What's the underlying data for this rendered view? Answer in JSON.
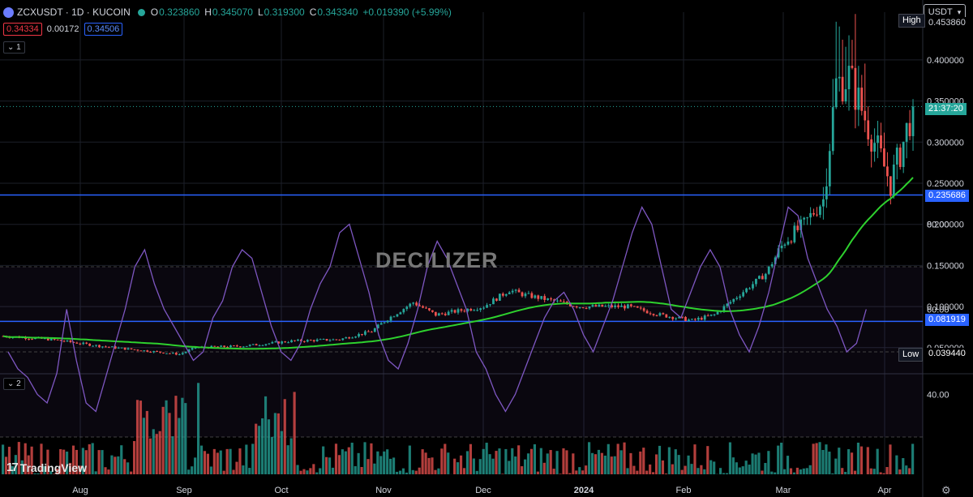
{
  "header": {
    "symbol_line": "ZCXUSDT · 1D · KUCOIN",
    "open_key": "O",
    "open": "0.323860",
    "high_key": "H",
    "high": "0.345070",
    "low_key": "L",
    "low": "0.319300",
    "close_key": "C",
    "close": "0.343340",
    "change": "+0.019390 (+5.99%)"
  },
  "order": {
    "sell": "0.34334",
    "spread": "0.00172",
    "buy": "0.34506"
  },
  "panes": {
    "main_label": "1",
    "indicator_label": "2"
  },
  "currency_select": "USDT",
  "watermark": "DECILIZER",
  "branding": "TradingView",
  "tags": {
    "high_label": "High",
    "high_value": "0.453860",
    "countdown": "21:37:20",
    "level_upper": "0.235686",
    "level_lower": "0.081919",
    "low_label": "Low",
    "low_value": "0.039440"
  },
  "colors": {
    "up": "#26a69a",
    "down": "#ef5350",
    "ma": "#2ed12e",
    "level": "#2962ff",
    "rsi": "#7e57c2",
    "last": "#26a69a"
  },
  "icons": {
    "currency_chevron": "chevron-down-icon",
    "settings": "gear-icon"
  },
  "chart_data": {
    "type": "candlestick",
    "price_axis": {
      "ticks": [
        0.4,
        0.35,
        0.3,
        0.25,
        0.2,
        0.15,
        0.1,
        0.05
      ],
      "tick_labels": [
        "0.400000",
        "0.350000",
        "0.300000",
        "0.250000",
        "0.200000",
        "0.150000",
        "0.100000",
        "0.050000"
      ],
      "range": [
        0.0,
        0.46
      ]
    },
    "time_axis": {
      "labels": [
        "Aug",
        "Sep",
        "Oct",
        "Nov",
        "Dec",
        "2024",
        "Jan",
        "Feb",
        "Mar",
        "Apr"
      ]
    },
    "horizontal_levels": [
      0.235686,
      0.081919
    ],
    "last_price": 0.34334,
    "anchors": [
      [
        0,
        0.064
      ],
      [
        15,
        0.06
      ],
      [
        30,
        0.052
      ],
      [
        45,
        0.046
      ],
      [
        55,
        0.042
      ],
      [
        60,
        0.05
      ],
      [
        75,
        0.052
      ],
      [
        90,
        0.058
      ],
      [
        105,
        0.06
      ],
      [
        115,
        0.07
      ],
      [
        120,
        0.085
      ],
      [
        128,
        0.105
      ],
      [
        135,
        0.09
      ],
      [
        150,
        0.1
      ],
      [
        158,
        0.12
      ],
      [
        162,
        0.115
      ],
      [
        180,
        0.1
      ],
      [
        195,
        0.1
      ],
      [
        205,
        0.09
      ],
      [
        215,
        0.083
      ],
      [
        222,
        0.09
      ],
      [
        230,
        0.115
      ],
      [
        238,
        0.14
      ],
      [
        244,
        0.18
      ],
      [
        250,
        0.2
      ],
      [
        256,
        0.23
      ],
      [
        260,
        0.37
      ],
      [
        264,
        0.38
      ],
      [
        268,
        0.34
      ],
      [
        272,
        0.3
      ],
      [
        277,
        0.25
      ],
      [
        281,
        0.3
      ],
      [
        284,
        0.343
      ]
    ],
    "volume_axis": {
      "ticks": [
        80,
        60,
        40
      ],
      "tick_labels": [
        "80.00",
        "60.00",
        "40.00"
      ],
      "overbought": 70,
      "oversold": 30,
      "range": [
        22,
        88
      ]
    },
    "rsi_series": [
      50,
      46,
      44,
      40,
      38,
      45,
      60,
      48,
      38,
      36,
      44,
      52,
      60,
      70,
      74,
      66,
      60,
      56,
      52,
      48,
      50,
      58,
      62,
      70,
      74,
      72,
      64,
      56,
      50,
      48,
      52,
      60,
      66,
      70,
      78,
      80,
      72,
      64,
      54,
      48,
      46,
      52,
      60,
      70,
      76,
      72,
      66,
      60,
      50,
      46,
      40,
      36,
      40,
      46,
      52,
      58,
      62,
      64,
      60,
      54,
      50,
      56,
      62,
      70,
      78,
      84,
      80,
      70,
      60,
      58,
      64,
      70,
      74,
      70,
      60,
      54,
      50,
      56,
      64,
      74,
      84,
      82,
      72,
      66,
      60,
      56,
      50,
      52,
      60
    ]
  }
}
